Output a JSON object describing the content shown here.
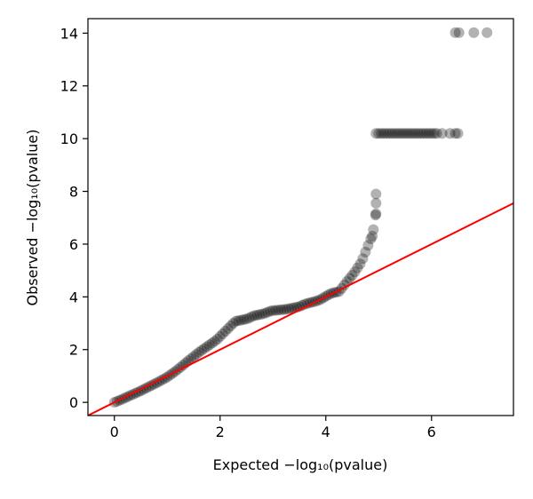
{
  "chart_data": {
    "type": "scatter",
    "title": "",
    "xlabel": "Expected −log₁₀(pvalue)",
    "ylabel": "Observed −log₁₀(pvalue)",
    "xlim": [
      -0.5,
      7.55
    ],
    "ylim": [
      -0.5,
      14.55
    ],
    "x_ticks": [
      0,
      2,
      4,
      6
    ],
    "y_ticks": [
      0,
      2,
      4,
      6,
      8,
      10,
      12,
      14
    ],
    "x_tick_labels": [
      "0",
      "2",
      "4",
      "6"
    ],
    "y_tick_labels": [
      "0",
      "2",
      "4",
      "6",
      "8",
      "10",
      "12",
      "14"
    ],
    "grid": false,
    "point_color": "#000000",
    "point_opacity": 0.3,
    "reference_line": {
      "slope": 1,
      "intercept": 0,
      "color": "#ff0000"
    },
    "series": [
      {
        "points": [
          [
            0.0,
            0.0
          ],
          [
            0.05,
            0.04
          ],
          [
            0.1,
            0.08
          ],
          [
            0.15,
            0.12
          ],
          [
            0.2,
            0.17
          ],
          [
            0.25,
            0.21
          ],
          [
            0.3,
            0.26
          ],
          [
            0.35,
            0.3
          ],
          [
            0.4,
            0.35
          ],
          [
            0.45,
            0.39
          ],
          [
            0.5,
            0.44
          ],
          [
            0.55,
            0.49
          ],
          [
            0.6,
            0.54
          ],
          [
            0.65,
            0.59
          ],
          [
            0.7,
            0.64
          ],
          [
            0.75,
            0.69
          ],
          [
            0.8,
            0.74
          ],
          [
            0.85,
            0.79
          ],
          [
            0.9,
            0.85
          ],
          [
            0.95,
            0.9
          ],
          [
            1.0,
            0.96
          ],
          [
            1.05,
            1.03
          ],
          [
            1.1,
            1.1
          ],
          [
            1.15,
            1.17
          ],
          [
            1.2,
            1.25
          ],
          [
            1.25,
            1.33
          ],
          [
            1.3,
            1.41
          ],
          [
            1.35,
            1.5
          ],
          [
            1.4,
            1.58
          ],
          [
            1.45,
            1.66
          ],
          [
            1.5,
            1.74
          ],
          [
            1.55,
            1.82
          ],
          [
            1.6,
            1.9
          ],
          [
            1.65,
            1.97
          ],
          [
            1.7,
            2.04
          ],
          [
            1.75,
            2.11
          ],
          [
            1.8,
            2.18
          ],
          [
            1.85,
            2.25
          ],
          [
            1.9,
            2.32
          ],
          [
            1.95,
            2.4
          ],
          [
            2.0,
            2.5
          ],
          [
            2.05,
            2.6
          ],
          [
            2.1,
            2.7
          ],
          [
            2.15,
            2.8
          ],
          [
            2.2,
            2.9
          ],
          [
            2.25,
            3.0
          ],
          [
            2.3,
            3.08
          ],
          [
            2.35,
            3.1
          ],
          [
            2.4,
            3.12
          ],
          [
            2.45,
            3.14
          ],
          [
            2.5,
            3.16
          ],
          [
            2.55,
            3.2
          ],
          [
            2.6,
            3.25
          ],
          [
            2.65,
            3.29
          ],
          [
            2.7,
            3.31
          ],
          [
            2.75,
            3.33
          ],
          [
            2.8,
            3.35
          ],
          [
            2.85,
            3.38
          ],
          [
            2.9,
            3.42
          ],
          [
            2.95,
            3.46
          ],
          [
            3.0,
            3.48
          ],
          [
            3.05,
            3.49
          ],
          [
            3.1,
            3.5
          ],
          [
            3.15,
            3.51
          ],
          [
            3.2,
            3.52
          ],
          [
            3.25,
            3.53
          ],
          [
            3.3,
            3.55
          ],
          [
            3.35,
            3.57
          ],
          [
            3.4,
            3.59
          ],
          [
            3.45,
            3.61
          ],
          [
            3.5,
            3.63
          ],
          [
            3.55,
            3.68
          ],
          [
            3.6,
            3.72
          ],
          [
            3.65,
            3.75
          ],
          [
            3.7,
            3.78
          ],
          [
            3.75,
            3.8
          ],
          [
            3.8,
            3.83
          ],
          [
            3.85,
            3.86
          ],
          [
            3.9,
            3.9
          ],
          [
            3.95,
            3.96
          ],
          [
            4.0,
            4.02
          ],
          [
            4.05,
            4.08
          ],
          [
            4.1,
            4.13
          ],
          [
            4.15,
            4.16
          ],
          [
            4.2,
            4.18
          ],
          [
            4.25,
            4.2
          ],
          [
            4.3,
            4.32
          ],
          [
            4.35,
            4.45
          ],
          [
            4.4,
            4.58
          ],
          [
            4.45,
            4.7
          ],
          [
            4.5,
            4.82
          ],
          [
            4.55,
            4.95
          ],
          [
            4.6,
            5.1
          ],
          [
            4.65,
            5.25
          ],
          [
            4.7,
            5.45
          ],
          [
            4.75,
            5.7
          ],
          [
            4.8,
            5.95
          ],
          [
            4.85,
            6.2
          ],
          [
            4.88,
            6.3
          ],
          [
            4.9,
            6.55
          ],
          [
            4.94,
            7.1
          ],
          [
            4.95,
            7.15
          ],
          [
            4.95,
            7.55
          ],
          [
            4.95,
            7.9
          ],
          [
            4.95,
            10.2
          ],
          [
            5.0,
            10.2
          ],
          [
            5.05,
            10.2
          ],
          [
            5.1,
            10.2
          ],
          [
            5.15,
            10.2
          ],
          [
            5.2,
            10.2
          ],
          [
            5.25,
            10.2
          ],
          [
            5.3,
            10.2
          ],
          [
            5.35,
            10.2
          ],
          [
            5.4,
            10.2
          ],
          [
            5.45,
            10.2
          ],
          [
            5.5,
            10.2
          ],
          [
            5.55,
            10.2
          ],
          [
            5.6,
            10.2
          ],
          [
            5.65,
            10.2
          ],
          [
            5.7,
            10.2
          ],
          [
            5.75,
            10.2
          ],
          [
            5.8,
            10.2
          ],
          [
            5.85,
            10.2
          ],
          [
            5.9,
            10.2
          ],
          [
            5.95,
            10.2
          ],
          [
            6.0,
            10.2
          ],
          [
            6.05,
            10.2
          ],
          [
            6.1,
            10.2
          ],
          [
            6.2,
            10.2
          ],
          [
            6.35,
            10.2
          ],
          [
            6.45,
            10.2
          ],
          [
            6.5,
            10.2
          ],
          [
            6.45,
            14.02
          ],
          [
            6.52,
            14.02
          ],
          [
            6.8,
            14.02
          ],
          [
            7.05,
            14.02
          ]
        ]
      }
    ]
  }
}
